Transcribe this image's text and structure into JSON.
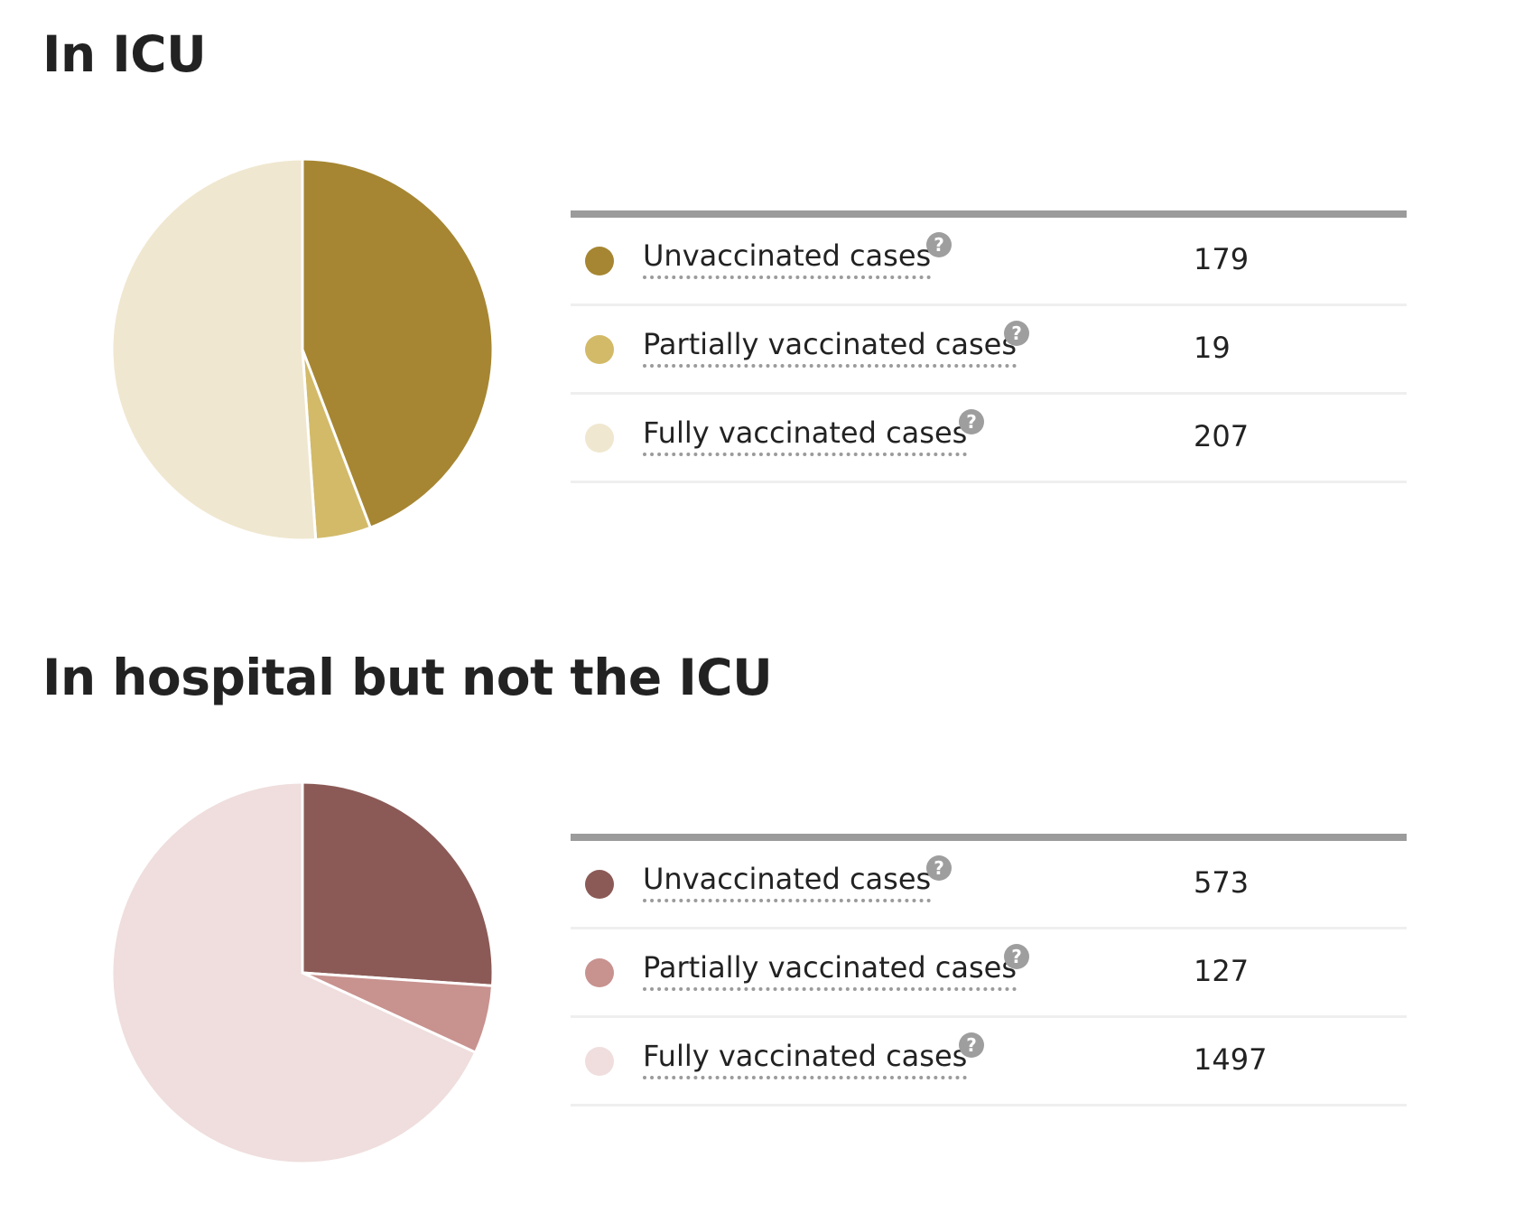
{
  "chart_data": [
    {
      "type": "pie",
      "title": "In ICU",
      "categories": [
        "Unvaccinated cases",
        "Partially vaccinated cases",
        "Fully vaccinated cases"
      ],
      "values": [
        179,
        19,
        207
      ],
      "colors": [
        "#a68632",
        "#d2ba69",
        "#f0e7d0"
      ]
    },
    {
      "type": "pie",
      "title": "In hospital but not the ICU",
      "categories": [
        "Unvaccinated cases",
        "Partially vaccinated cases",
        "Fully vaccinated cases"
      ],
      "values": [
        573,
        127,
        1497
      ],
      "colors": [
        "#8b5a56",
        "#c8928f",
        "#efdedd"
      ]
    }
  ],
  "help_icon_glyph": "?"
}
